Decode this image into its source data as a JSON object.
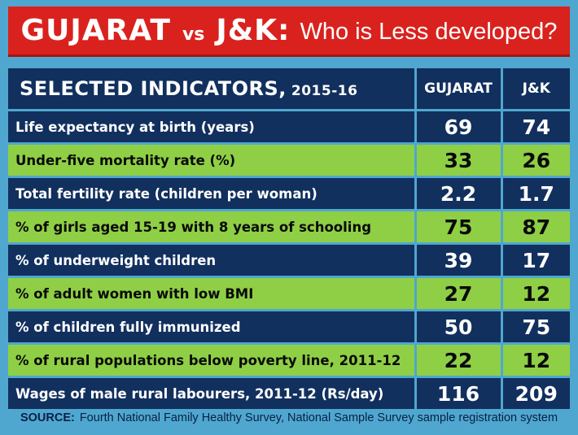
{
  "title": {
    "left": "GUJARAT",
    "vs": "vs",
    "right": "J&K:",
    "question": "Who is Less developed?"
  },
  "table": {
    "header": {
      "label": "SELECTED INDICATORS,",
      "label_year": "2015-16",
      "col_gujarat": "GUJARAT",
      "col_jk": "J&K"
    },
    "rows": [
      {
        "label": "Life expectancy at birth (years)",
        "gujarat": "69",
        "jk": "74"
      },
      {
        "label": "Under-five mortality rate (%)",
        "gujarat": "33",
        "jk": "26"
      },
      {
        "label": "Total fertility rate (children per woman)",
        "gujarat": "2.2",
        "jk": "1.7"
      },
      {
        "label": "% of girls aged 15-19 with 8 years of schooling",
        "gujarat": "75",
        "jk": "87"
      },
      {
        "label": "% of underweight children",
        "gujarat": "39",
        "jk": "17"
      },
      {
        "label": "% of adult women with low BMI",
        "gujarat": "27",
        "jk": "12"
      },
      {
        "label": "% of children fully immunized",
        "gujarat": "50",
        "jk": "75"
      },
      {
        "label": "% of rural populations below poverty line, 2011-12",
        "gujarat": "22",
        "jk": "12"
      },
      {
        "label": "Wages of male rural labourers, 2011-12 (Rs/day)",
        "gujarat": "116",
        "jk": "209"
      }
    ]
  },
  "source": {
    "label": "SOURCE:",
    "text": "Fourth National Family Healthy Survey, National Sample Survey sample registration system"
  },
  "colors": {
    "background": "#4fa7cf",
    "title_red": "#d9221e",
    "navy": "#12305e",
    "green": "#8fcf45"
  }
}
